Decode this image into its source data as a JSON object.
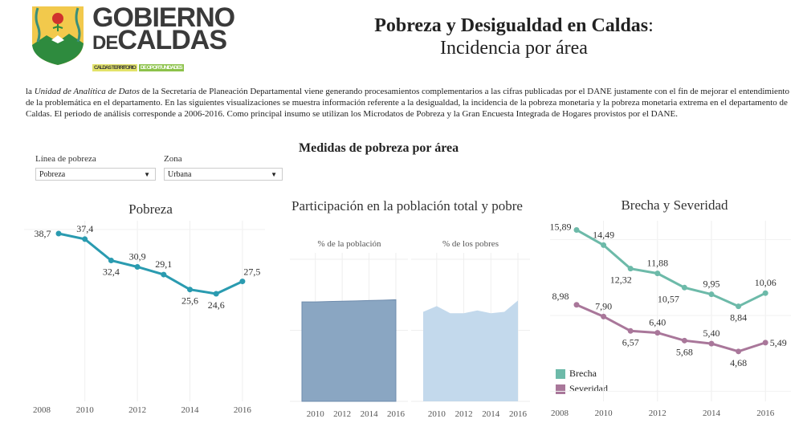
{
  "header": {
    "logo": {
      "line1": "GOBIERNO",
      "line2_small": "DE",
      "line2": "CALDAS",
      "tag1": "CALDAS TERRITORIO",
      "tag2": "DE OPORTUNIDADES"
    },
    "title_bold": "Pobreza y Desigualdad en Caldas",
    "title_colon": ":",
    "subtitle": "Incidencia por área"
  },
  "intro": {
    "prefix": "la ",
    "italic": "Unidad de Analítica de Datos",
    "text": " de la Secretaría de Planeación Departamental viene generando procesamientos complementarios a las cifras publicadas por el DANE justamente con el fin de mejorar el entendimiento de la problemática en el departamento. En las siguientes visualizaciones se muestra información referente a la desigualdad, la incidencia de la pobreza monetaria y la pobreza monetaria extrema en el departamento de Caldas. El periodo de análisis corresponde a 2006-2016. Como principal insumo se utilizan los Microdatos de Pobreza y la Gran Encuesta Integrada de Hogares provistos por el DANE."
  },
  "section_title": "Medidas de pobreza por área",
  "filters": {
    "linea": {
      "label": "Línea de pobreza",
      "value": "Pobreza"
    },
    "zona": {
      "label": "Zona",
      "value": "Urbana"
    }
  },
  "chart_data": [
    {
      "type": "line",
      "title": "Pobreza",
      "x": [
        2009,
        2010,
        2011,
        2012,
        2013,
        2014,
        2015,
        2016
      ],
      "series": [
        {
          "values": [
            38.7,
            37.4,
            32.4,
            30.9,
            29.1,
            25.6,
            24.6,
            27.5
          ],
          "labels": [
            "38,7",
            "37,4",
            "32,4",
            "30,9",
            "29,1",
            "25,6",
            "24,6",
            "27,5"
          ],
          "color": "#2a9bb0"
        }
      ],
      "xticks": [
        "2008",
        "2010",
        "2012",
        "2014",
        "2016"
      ],
      "grid": true
    },
    {
      "type": "area",
      "title": "Participación en la población total y pobre",
      "x": [
        2009,
        2010,
        2011,
        2012,
        2013,
        2014,
        2015,
        2016
      ],
      "panels": [
        {
          "label": "% de la población",
          "values": [
            70,
            70,
            70.3,
            70.5,
            70.7,
            71,
            71.2,
            71.5
          ],
          "color": "#8aa6c2"
        },
        {
          "label": "% de los pobres",
          "values": [
            63,
            67,
            62,
            62,
            64,
            62,
            63,
            71
          ],
          "color": "#c3d9ec"
        }
      ],
      "ylim": [
        0,
        100
      ],
      "xticks": [
        "2010",
        "2012",
        "2014",
        "2016"
      ],
      "grid": true
    },
    {
      "type": "line",
      "title": "Brecha y Severidad",
      "x": [
        2009,
        2010,
        2011,
        2012,
        2013,
        2014,
        2015,
        2016
      ],
      "series": [
        {
          "name": "Brecha",
          "values": [
            15.89,
            14.49,
            12.32,
            11.88,
            10.57,
            9.95,
            8.84,
            10.06
          ],
          "labels": [
            "15,89",
            "14,49",
            "12,32",
            "11,88",
            "10,57",
            "9,95",
            "8,84",
            "10,06"
          ],
          "color": "#6dbaa9"
        },
        {
          "name": "Severidad",
          "values": [
            8.98,
            7.9,
            6.57,
            6.4,
            5.68,
            5.4,
            4.68,
            5.49
          ],
          "labels": [
            "8,98",
            "7,90",
            "6,57",
            "6,40",
            "5,68",
            "5,40",
            "4,68",
            "5,49"
          ],
          "color": "#a9779a"
        }
      ],
      "xticks": [
        "2008",
        "2010",
        "2012",
        "2014",
        "2016"
      ],
      "legend": "bottom-left",
      "grid": true
    }
  ]
}
